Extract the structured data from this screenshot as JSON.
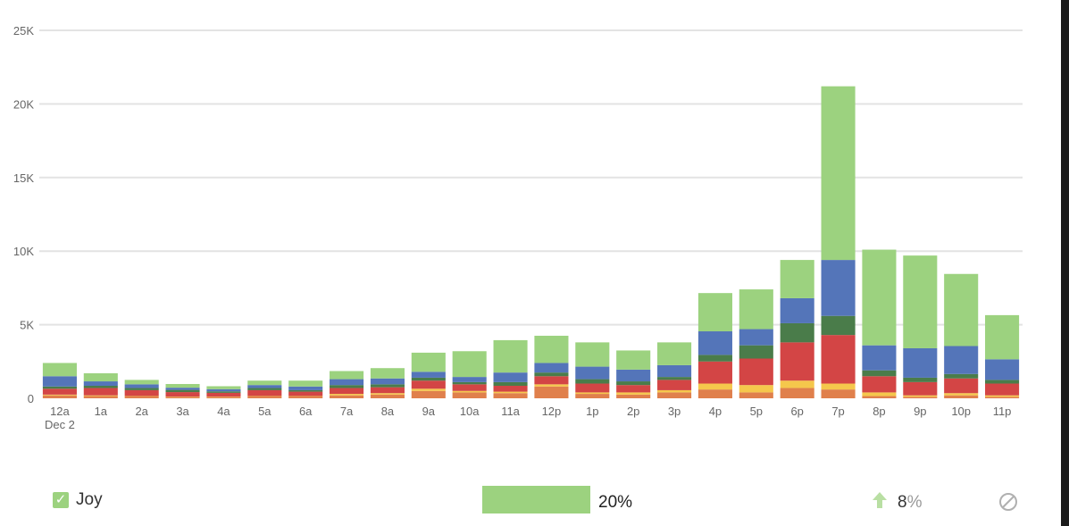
{
  "colors": {
    "joy": "#9cd27f",
    "blue": "#5475b9",
    "darkgreen": "#4a7c4a",
    "red": "#d34545",
    "yellow": "#f5c74c",
    "orange": "#e0804c",
    "grid": "#e3e3e3",
    "tick": "#666666"
  },
  "chart_data": {
    "type": "bar",
    "stacked": true,
    "categories": [
      "12a",
      "1a",
      "2a",
      "3a",
      "4a",
      "5a",
      "6a",
      "7a",
      "8a",
      "9a",
      "10a",
      "11a",
      "12p",
      "1p",
      "2p",
      "3p",
      "4p",
      "5p",
      "6p",
      "7p",
      "8p",
      "9p",
      "10p",
      "11p"
    ],
    "category_sublabels": [
      "Dec 2",
      "",
      "",
      "",
      "",
      "",
      "",
      "",
      "",
      "",
      "",
      "",
      "",
      "",
      "",
      "",
      "",
      "",
      "",
      "",
      "",
      "",
      "",
      ""
    ],
    "y_ticks": [
      "0",
      "5K",
      "10K",
      "15K",
      "20K",
      "25K"
    ],
    "ylim": [
      0,
      25000
    ],
    "grid": true,
    "series": [
      {
        "color_key": "orange",
        "values": [
          200,
          150,
          120,
          100,
          100,
          120,
          120,
          200,
          250,
          500,
          400,
          350,
          800,
          300,
          250,
          400,
          600,
          400,
          700,
          600,
          150,
          100,
          200,
          100
        ]
      },
      {
        "color_key": "yellow",
        "values": [
          50,
          50,
          30,
          20,
          20,
          30,
          30,
          100,
          100,
          150,
          100,
          100,
          150,
          100,
          150,
          150,
          400,
          500,
          500,
          400,
          250,
          100,
          150,
          100
        ]
      },
      {
        "color_key": "red",
        "values": [
          400,
          500,
          400,
          300,
          250,
          400,
          300,
          400,
          400,
          550,
          450,
          400,
          550,
          600,
          500,
          700,
          1500,
          1800,
          2600,
          3300,
          1100,
          900,
          1000,
          800
        ]
      },
      {
        "color_key": "darkgreen",
        "values": [
          150,
          150,
          150,
          150,
          100,
          150,
          100,
          200,
          200,
          200,
          150,
          250,
          250,
          300,
          250,
          200,
          450,
          900,
          1300,
          1300,
          400,
          300,
          300,
          250
        ]
      },
      {
        "color_key": "blue",
        "values": [
          700,
          300,
          250,
          150,
          150,
          200,
          250,
          400,
          400,
          400,
          350,
          650,
          650,
          850,
          800,
          800,
          1600,
          1100,
          1700,
          3800,
          1700,
          2000,
          1900,
          1400
        ]
      },
      {
        "name": "Joy",
        "color_key": "joy",
        "values": [
          900,
          550,
          300,
          250,
          200,
          300,
          400,
          550,
          700,
          1300,
          1750,
          2200,
          1850,
          1650,
          1300,
          1550,
          2600,
          2700,
          2600,
          11800,
          6500,
          6300,
          4900,
          3000
        ]
      }
    ]
  },
  "legend": {
    "label": "Joy",
    "check": "✓",
    "share_text": "20%",
    "share_fraction": 0.2,
    "trend_value": "8",
    "trend_unit": "%",
    "trend_icon": "up-arrow-icon",
    "disable_icon": "disable-icon"
  }
}
